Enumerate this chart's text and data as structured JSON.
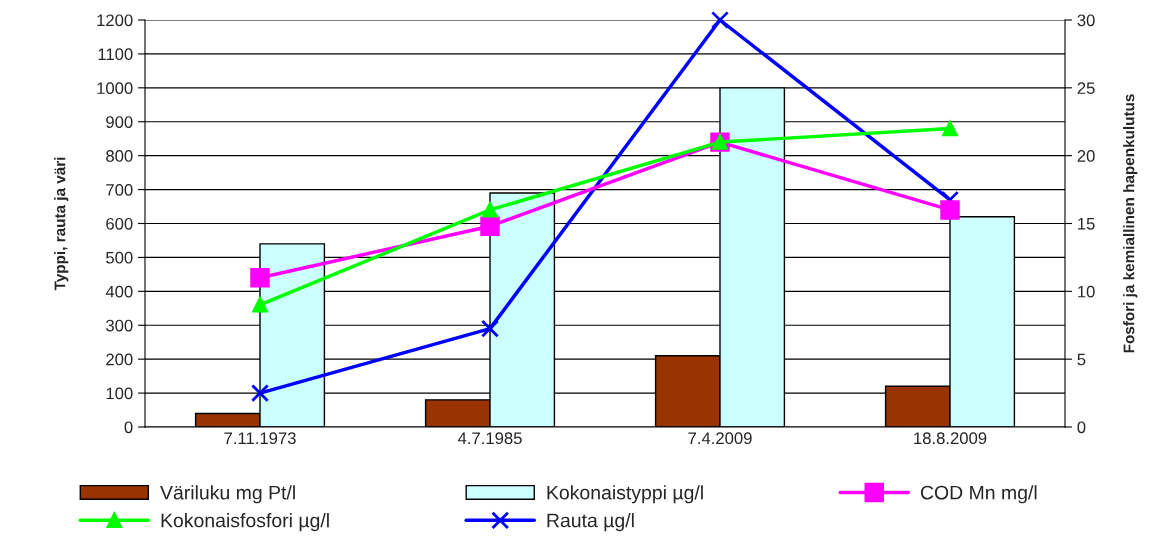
{
  "chart_data": {
    "type": "bar",
    "ylabel": "Typpi, rauta ja väri",
    "y2label": "Fosfori ja kemiallinen hapenkulutus",
    "categories": [
      "7.11.1973",
      "4.7.1985",
      "7.4.2009",
      "18.8.2009"
    ],
    "series": [
      {
        "name": "Väriluku mg Pt/l",
        "color": "#993300",
        "values": [
          40,
          80,
          210,
          120
        ]
      },
      {
        "name": "Kokonaistyppi µg/l",
        "color": "#ccffff",
        "values": [
          540,
          690,
          1000,
          620
        ]
      },
      {
        "name": "COD Mn mg/l",
        "type": "line",
        "axis": "y2",
        "color": "#ff00ff",
        "marker": "square",
        "values": [
          11,
          14.8,
          21,
          16
        ]
      },
      {
        "name": "Kokonaisfosfori µg/l",
        "type": "line",
        "axis": "y2",
        "color": "#00ff00",
        "marker": "triangle",
        "values": [
          9,
          16,
          21,
          22
        ]
      },
      {
        "name": "Rauta µg/l",
        "type": "line",
        "color": "#0000ff",
        "marker": "cross",
        "values": [
          100,
          290,
          1200,
          670
        ]
      }
    ],
    "ylim": [
      0,
      1200
    ],
    "yticks": [
      0,
      100,
      200,
      300,
      400,
      500,
      600,
      700,
      800,
      900,
      1000,
      1100,
      1200
    ],
    "y2lim": [
      0,
      30
    ],
    "y2ticks": [
      0,
      5,
      10,
      15,
      20,
      25,
      30
    ],
    "grid": "y",
    "legend": "bottom"
  }
}
